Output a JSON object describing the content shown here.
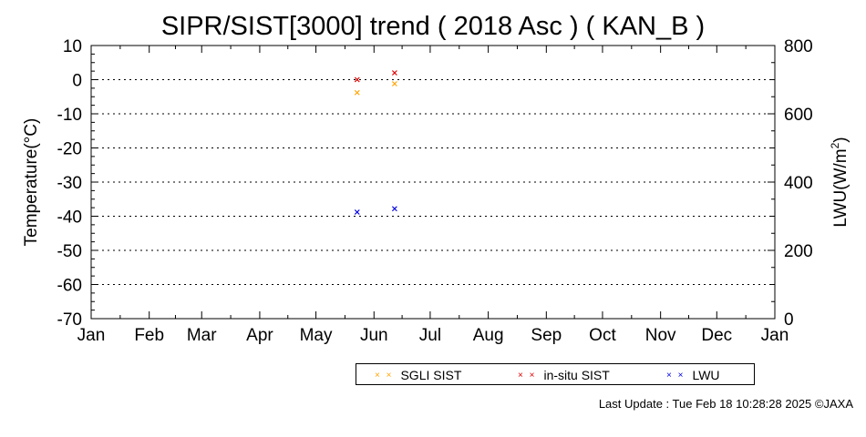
{
  "chart_data": {
    "type": "scatter",
    "title": "SIPR/SIST[3000] trend ( 2018 Asc ) ( KAN_B )",
    "ylabel": "Temperature(°C)",
    "y2label_prefix": "LWU(W/m",
    "y2label_sup": "2",
    "y2label_suffix": ")",
    "ylim": [
      -70,
      10
    ],
    "yticks": [
      "10",
      "0",
      "-10",
      "-20",
      "-30",
      "-40",
      "-50",
      "-60",
      "-70"
    ],
    "y2lim": [
      0,
      800
    ],
    "y2ticks": [
      "800",
      "600",
      "400",
      "200",
      "0"
    ],
    "xticks": [
      "Jan",
      "Feb",
      "Mar",
      "Apr",
      "May",
      "Jun",
      "Jul",
      "Aug",
      "Sep",
      "Oct",
      "Nov",
      "Dec",
      "Jan"
    ],
    "grid": true,
    "legend_placement": "bottom",
    "series": [
      {
        "name": "SGLI SIST",
        "color": "#FFA500",
        "axis": "left",
        "points": [
          {
            "x": "2018-05-23",
            "y": -3.8
          },
          {
            "x": "2018-06-12",
            "y": -1.2
          }
        ]
      },
      {
        "name": "in-situ SIST",
        "color": "#E00000",
        "axis": "left",
        "points": [
          {
            "x": "2018-05-23",
            "y": 0.0
          },
          {
            "x": "2018-06-12",
            "y": 2.0
          }
        ]
      },
      {
        "name": "LWU",
        "color": "#0000E0",
        "axis": "right",
        "points": [
          {
            "x": "2018-05-23",
            "y": 312
          },
          {
            "x": "2018-06-12",
            "y": 322
          }
        ]
      }
    ]
  },
  "legend": {
    "items": [
      {
        "marker": "× ×",
        "label": "SGLI SIST",
        "color": "#FFA500"
      },
      {
        "marker": "× ×",
        "label": "in-situ SIST",
        "color": "#E00000"
      },
      {
        "marker": "× ×",
        "label": "LWU",
        "color": "#0000E0"
      }
    ]
  },
  "footer": "Last Update : Tue Feb 18 10:28:28 2025 ©JAXA"
}
